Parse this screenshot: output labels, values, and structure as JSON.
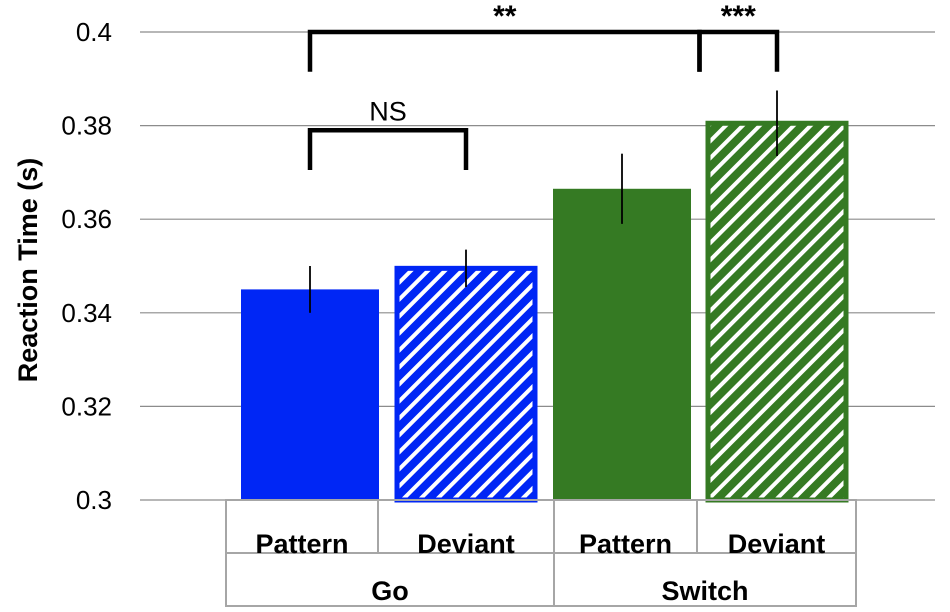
{
  "chart_data": {
    "type": "bar",
    "ylabel": "Reaction Time (s)",
    "xlabel": "",
    "ylim": [
      0.3,
      0.4
    ],
    "yticks": [
      0.3,
      0.32,
      0.34,
      0.36,
      0.38,
      0.4
    ],
    "ytick_labels": [
      "0.3",
      "0.32",
      "0.34",
      "0.36",
      "0.38",
      "0.4"
    ],
    "grid": true,
    "groups": [
      "Go",
      "Switch"
    ],
    "categories": [
      "Pattern",
      "Deviant",
      "Pattern",
      "Deviant"
    ],
    "bars": [
      {
        "group": "Go",
        "category": "Pattern",
        "value": 0.345,
        "err": 0.005,
        "color": "#0026F5",
        "hatched": false
      },
      {
        "group": "Go",
        "category": "Deviant",
        "value": 0.3495,
        "err": 0.004,
        "color": "#0026F5",
        "hatched": true
      },
      {
        "group": "Switch",
        "category": "Pattern",
        "value": 0.3665,
        "err": 0.0075,
        "color": "#357A23",
        "hatched": false
      },
      {
        "group": "Switch",
        "category": "Deviant",
        "value": 0.3805,
        "err": 0.007,
        "color": "#357A23",
        "hatched": true
      }
    ],
    "annotations": [
      {
        "label": "NS",
        "from_bar": 0,
        "to_bar": 1,
        "y": 0.379,
        "leg_bottom": 0.371
      },
      {
        "label": "**",
        "from_bar": 0,
        "to_bar": 2.5,
        "y": 0.4,
        "leg_bottom": 0.392
      },
      {
        "label": "***",
        "from_bar": 2.5,
        "to_bar": 3,
        "y": 0.4,
        "leg_bottom": 0.392
      }
    ]
  }
}
